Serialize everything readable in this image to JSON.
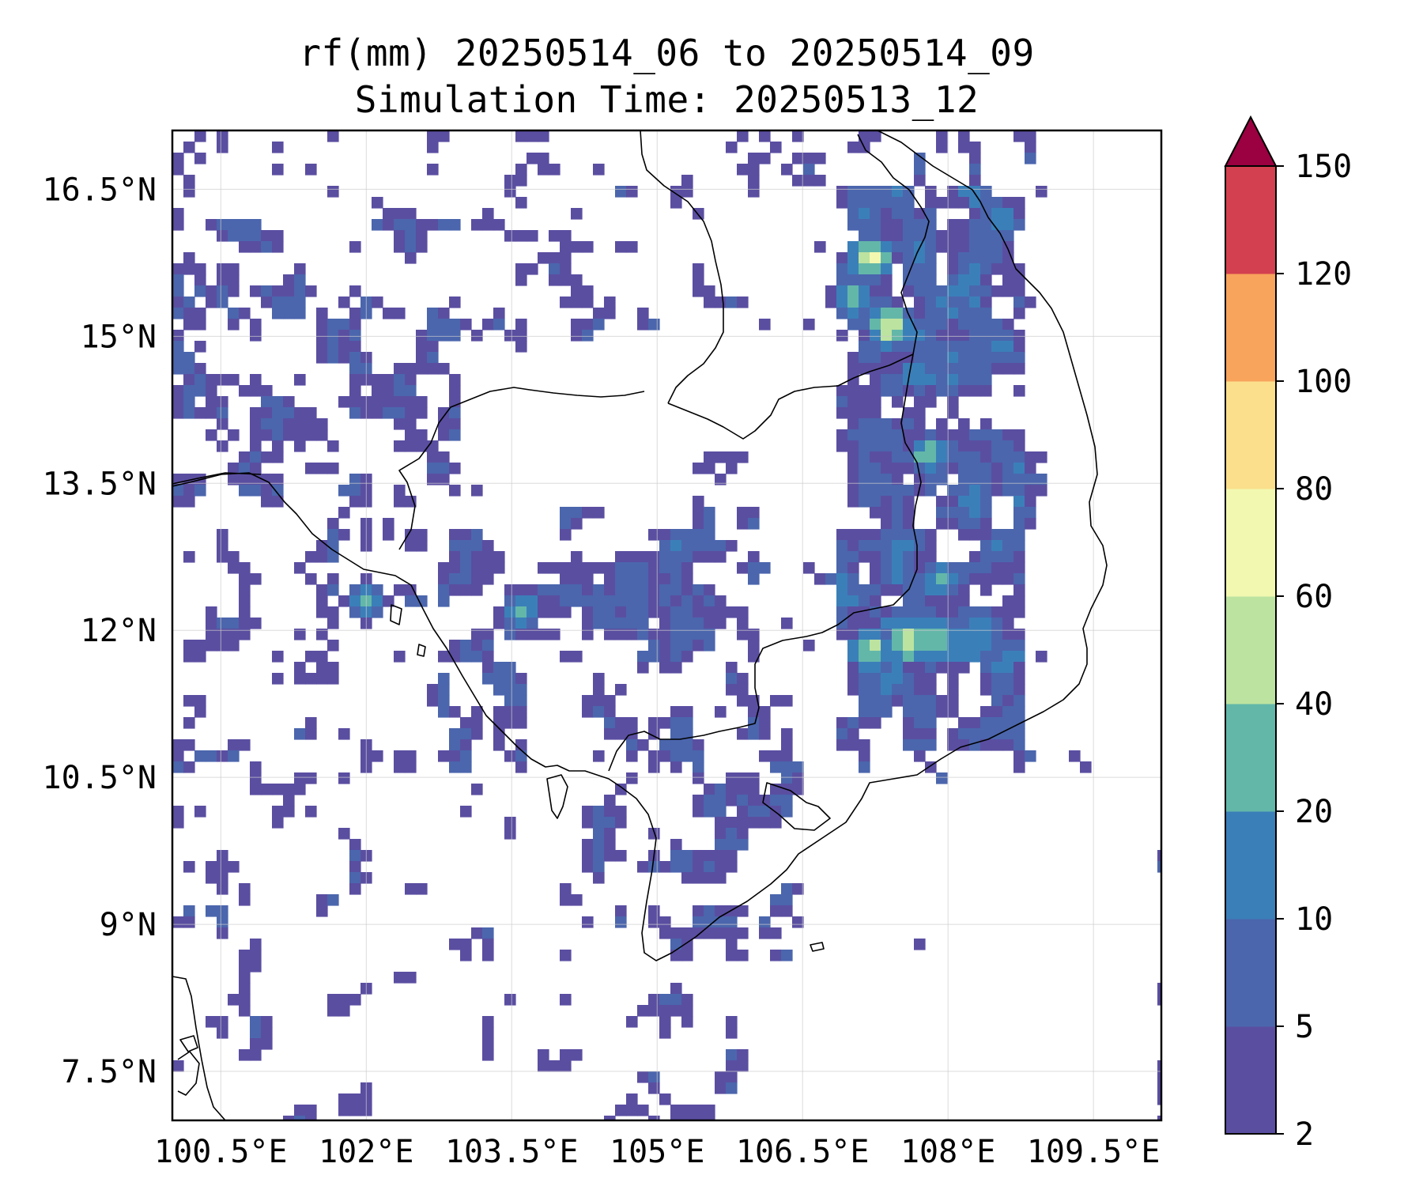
{
  "title": {
    "line1": "rf(mm) 20250514_06 to 20250514_09",
    "line2": "Simulation Time: 20250513_12"
  },
  "map": {
    "region": "Indochina",
    "variable": "rf",
    "units": "mm",
    "lon_range": [
      100.0,
      110.2
    ],
    "lat_range": [
      7.0,
      17.1
    ],
    "lat_ticks": [
      {
        "value": 16.5,
        "label": "16.5°N"
      },
      {
        "value": 15,
        "label": "15°N"
      },
      {
        "value": 13.5,
        "label": "13.5°N"
      },
      {
        "value": 12,
        "label": "12°N"
      },
      {
        "value": 10.5,
        "label": "10.5°N"
      },
      {
        "value": 9,
        "label": "9°N"
      },
      {
        "value": 7.5,
        "label": "7.5°N"
      }
    ],
    "lon_ticks": [
      {
        "value": 100.5,
        "label": "100.5°E"
      },
      {
        "value": 102,
        "label": "102°E"
      },
      {
        "value": 103.5,
        "label": "103.5°E"
      },
      {
        "value": 105,
        "label": "105°E"
      },
      {
        "value": 106.5,
        "label": "106.5°E"
      },
      {
        "value": 108,
        "label": "108°E"
      },
      {
        "value": 109.5,
        "label": "109.5°E"
      }
    ],
    "gridlines": true,
    "coastline_color": "#000000"
  },
  "colorbar": {
    "levels": [
      2,
      5,
      10,
      20,
      40,
      60,
      80,
      100,
      120,
      150
    ],
    "labels": [
      "2",
      "5",
      "10",
      "20",
      "40",
      "60",
      "80",
      "100",
      "120",
      "150"
    ],
    "colors": [
      "#5a4ea1",
      "#4b66ad",
      "#3b7fb9",
      "#63b7a9",
      "#bde3a0",
      "#f2f8b0",
      "#fbdf8c",
      "#f8a45c",
      "#d3404f"
    ],
    "extend_color": "#9b0041",
    "extend": "max"
  },
  "precip_hotspots": [
    {
      "lon": 107.2,
      "lat": 15.8,
      "value": 70
    },
    {
      "lon": 107.0,
      "lat": 15.4,
      "value": 30
    },
    {
      "lon": 107.4,
      "lat": 15.1,
      "value": 60
    },
    {
      "lon": 107.7,
      "lat": 14.6,
      "value": 20
    },
    {
      "lon": 107.8,
      "lat": 13.8,
      "value": 30
    },
    {
      "lon": 107.9,
      "lat": 12.5,
      "value": 25
    },
    {
      "lon": 107.6,
      "lat": 11.9,
      "value": 60
    },
    {
      "lon": 107.2,
      "lat": 11.8,
      "value": 50
    },
    {
      "lon": 107.9,
      "lat": 11.9,
      "value": 45
    },
    {
      "lon": 102.0,
      "lat": 12.3,
      "value": 25
    },
    {
      "lon": 103.6,
      "lat": 12.2,
      "value": 25
    }
  ]
}
